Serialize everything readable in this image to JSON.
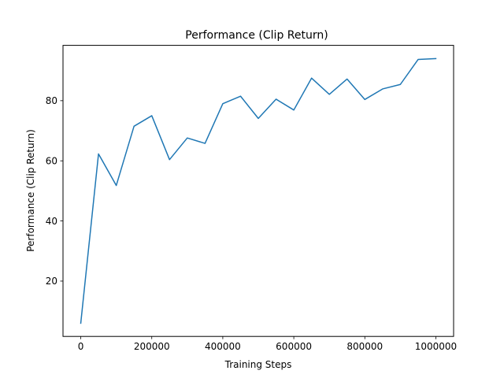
{
  "chart_data": {
    "type": "line",
    "title": "Performance (Clip Return)",
    "xlabel": "Training Steps",
    "ylabel": "Performance (Clip Return)",
    "xlim": [
      -50000,
      1050000
    ],
    "ylim": [
      1.6,
      98.4
    ],
    "x_ticks": [
      0,
      200000,
      400000,
      600000,
      800000,
      1000000
    ],
    "x_tick_labels": [
      "0",
      "200000",
      "400000",
      "600000",
      "800000",
      "1000000"
    ],
    "y_ticks": [
      20,
      40,
      60,
      80
    ],
    "y_tick_labels": [
      "20",
      "40",
      "60",
      "80"
    ],
    "grid": false,
    "legend": "none",
    "series": [
      {
        "color": "#1f77b4",
        "x": [
          0,
          50000,
          100000,
          150000,
          200000,
          250000,
          300000,
          350000,
          400000,
          450000,
          500000,
          550000,
          600000,
          650000,
          700000,
          750000,
          800000,
          850000,
          900000,
          950000,
          1000000
        ],
        "y": [
          6.0,
          62.3,
          51.8,
          71.5,
          75.0,
          60.4,
          67.6,
          65.8,
          79.0,
          81.5,
          74.1,
          80.5,
          76.9,
          87.5,
          82.1,
          87.2,
          80.4,
          83.9,
          85.4,
          93.7,
          94.0
        ]
      }
    ]
  }
}
